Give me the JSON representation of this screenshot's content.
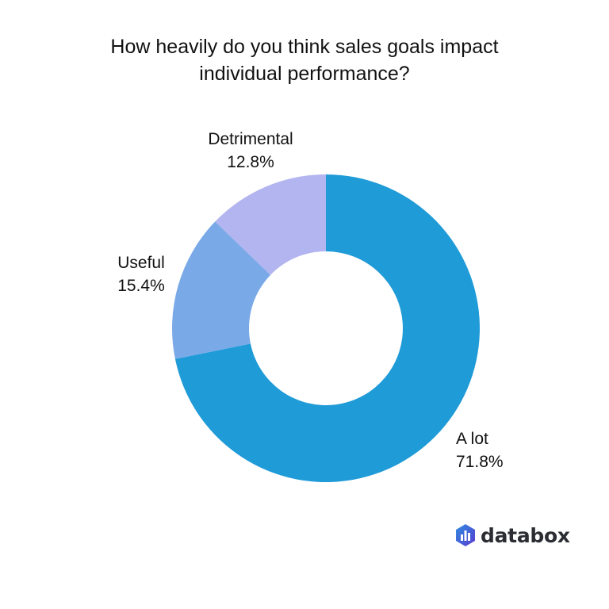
{
  "chart_data": {
    "type": "pie",
    "donut": true,
    "title": "How heavily do you think sales goals impact individual performance?",
    "title_lines": [
      "How heavily do you think sales goals impact",
      "individual performance?"
    ],
    "slices": [
      {
        "label": "A lot",
        "value": 71.8,
        "value_label": "71.8%",
        "color": "#1f9bd7"
      },
      {
        "label": "Useful",
        "value": 15.4,
        "value_label": "15.4%",
        "color": "#7aa9e8"
      },
      {
        "label": "Detrimental",
        "value": 12.8,
        "value_label": "12.8%",
        "color": "#b3b5f0"
      }
    ]
  },
  "brand": {
    "name": "databox",
    "color": "#3a58d8"
  }
}
